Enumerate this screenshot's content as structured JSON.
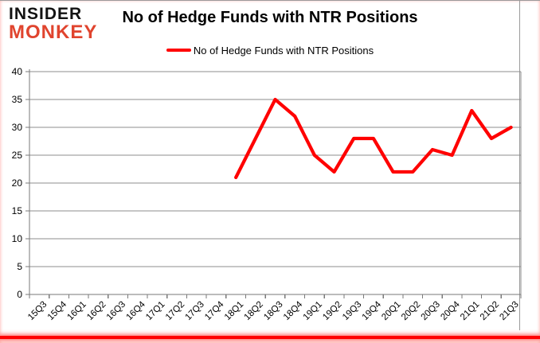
{
  "logo": {
    "line1": "INSIDER",
    "line2": "MONKEY"
  },
  "title": "No of Hedge Funds with NTR Positions",
  "legend": {
    "label": "No of Hedge Funds with NTR Positions"
  },
  "colors": {
    "series": "#ff0000",
    "grid": "#8c8c8c",
    "axis": "#7a7a7a",
    "tick_label": "#000000",
    "logo_primary": "#131313",
    "logo_accent": "#e0442e",
    "border_bottom": "#ff0000"
  },
  "chart_data": {
    "type": "line",
    "title": "No of Hedge Funds with NTR Positions",
    "xlabel": "",
    "ylabel": "",
    "ylim": [
      0,
      40
    ],
    "ytick_interval": 5,
    "grid": true,
    "legend_position": "top",
    "categories": [
      "15Q3",
      "15Q4",
      "16Q1",
      "16Q2",
      "16Q3",
      "16Q4",
      "17Q1",
      "17Q2",
      "17Q3",
      "17Q4",
      "18Q1",
      "18Q2",
      "18Q3",
      "18Q4",
      "19Q1",
      "19Q2",
      "19Q3",
      "19Q4",
      "20Q1",
      "20Q2",
      "20Q3",
      "20Q4",
      "21Q1",
      "21Q2",
      "21Q3"
    ],
    "series": [
      {
        "name": "No of Hedge Funds with NTR Positions",
        "color": "#ff0000",
        "values": [
          null,
          null,
          null,
          null,
          null,
          null,
          null,
          null,
          null,
          null,
          21,
          28,
          35,
          32,
          25,
          22,
          28,
          28,
          22,
          22,
          26,
          25,
          33,
          28,
          30
        ]
      }
    ]
  }
}
